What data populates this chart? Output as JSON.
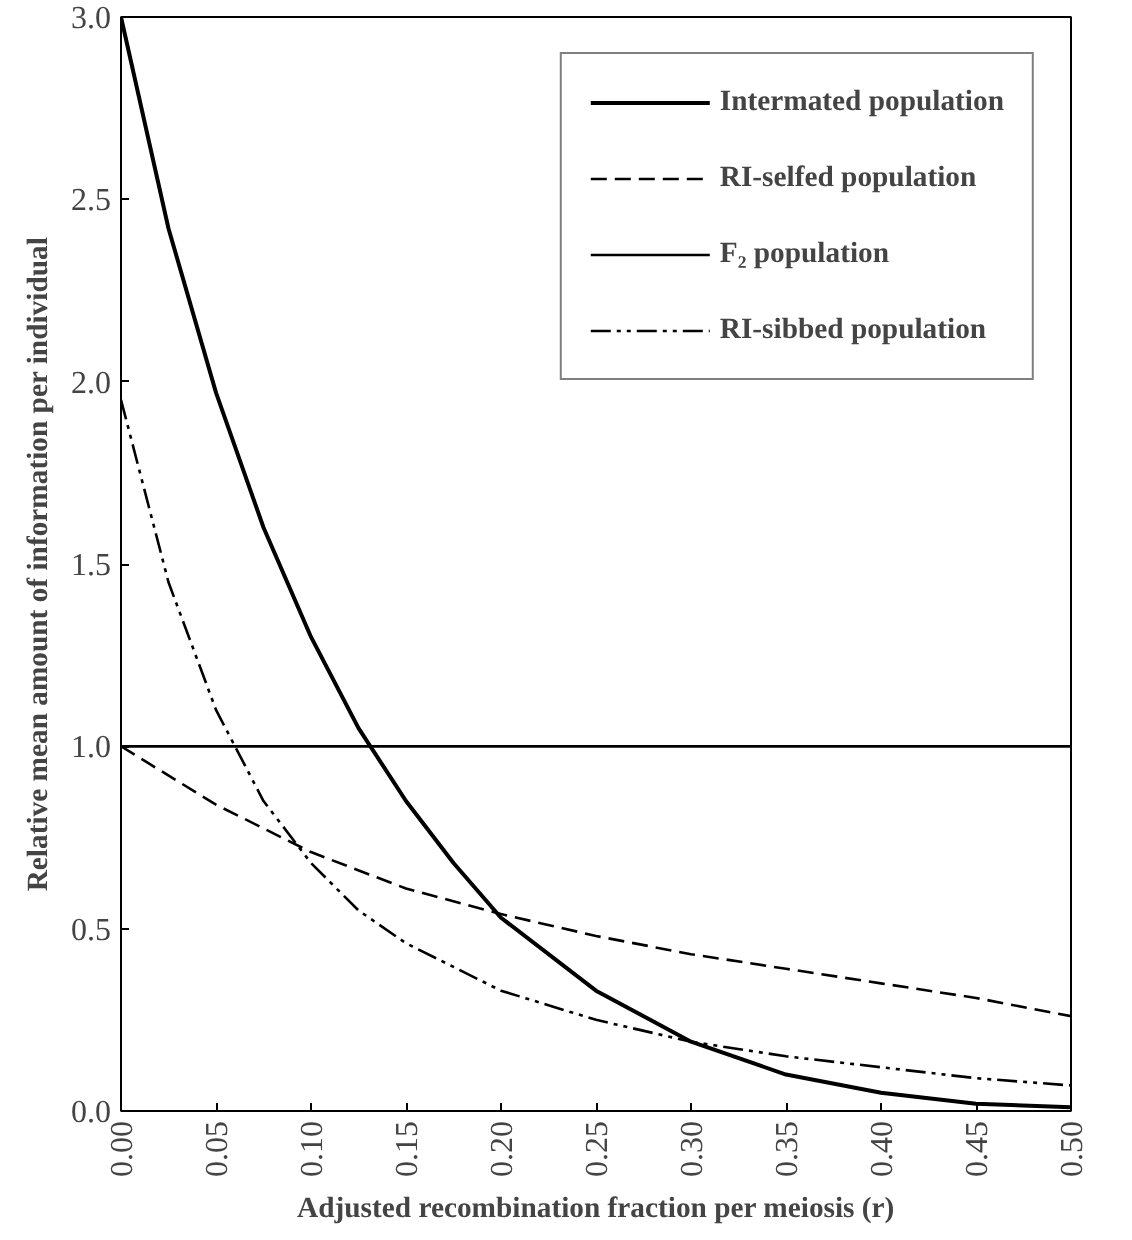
{
  "chart_data": {
    "type": "line",
    "xlabel": "Adjusted recombination fraction per meiosis (r)",
    "ylabel": "Relative mean amount of information per individual",
    "xlim": [
      0,
      0.5
    ],
    "ylim": [
      0,
      3.0
    ],
    "xticks": [
      {
        "value": 0,
        "label": "0.00"
      },
      0.05,
      {
        "value": 0.1,
        "label": "0.10"
      },
      0.15,
      {
        "value": 0.2,
        "label": "0.20"
      },
      0.25,
      {
        "value": 0.3,
        "label": "0.30"
      },
      0.35,
      {
        "value": 0.4,
        "label": "0.40"
      },
      0.45,
      {
        "value": 0.5,
        "label": "0.50"
      }
    ],
    "yticks": [
      {
        "value": 0,
        "label": "0.0"
      },
      0.5,
      {
        "value": 1,
        "label": "1.0"
      },
      1.5,
      {
        "value": 2,
        "label": "2.0"
      },
      2.5,
      {
        "value": 3,
        "label": "3.0"
      }
    ],
    "grid": false,
    "legend": "top right",
    "series": [
      {
        "name": "Intermated population",
        "color": "#000000",
        "line_style": "solid",
        "x": [
          0,
          0.025,
          0.05,
          0.075,
          0.1,
          0.125,
          0.15,
          0.175,
          0.2,
          0.25,
          0.3,
          0.35,
          0.4,
          0.45,
          0.5
        ],
        "values": [
          3.0,
          2.42,
          1.97,
          1.6,
          1.3,
          1.05,
          0.85,
          0.68,
          0.53,
          0.33,
          0.19,
          0.1,
          0.05,
          0.02,
          0.01
        ]
      },
      {
        "name": "RI-selfed population",
        "color": "#000000",
        "line_style": "dashed",
        "x": [
          0,
          0.05,
          0.1,
          0.15,
          0.2,
          0.25,
          0.3,
          0.35,
          0.4,
          0.45,
          0.5
        ],
        "values": [
          1.0,
          0.84,
          0.71,
          0.61,
          0.54,
          0.48,
          0.43,
          0.39,
          0.35,
          0.31,
          0.26
        ]
      },
      {
        "name": "F₂ population",
        "color": "#000000",
        "line_style": "solid",
        "x": [
          0,
          0.5
        ],
        "values": [
          1.0,
          1.0
        ]
      },
      {
        "name": "RI-sibbed population",
        "color": "#000000",
        "line_style": "dashdotdot",
        "x": [
          0,
          0.025,
          0.05,
          0.075,
          0.1,
          0.125,
          0.15,
          0.2,
          0.25,
          0.3,
          0.35,
          0.4,
          0.45,
          0.5
        ],
        "values": [
          1.95,
          1.45,
          1.1,
          0.85,
          0.68,
          0.55,
          0.46,
          0.33,
          0.25,
          0.19,
          0.15,
          0.12,
          0.09,
          0.07
        ]
      }
    ]
  }
}
